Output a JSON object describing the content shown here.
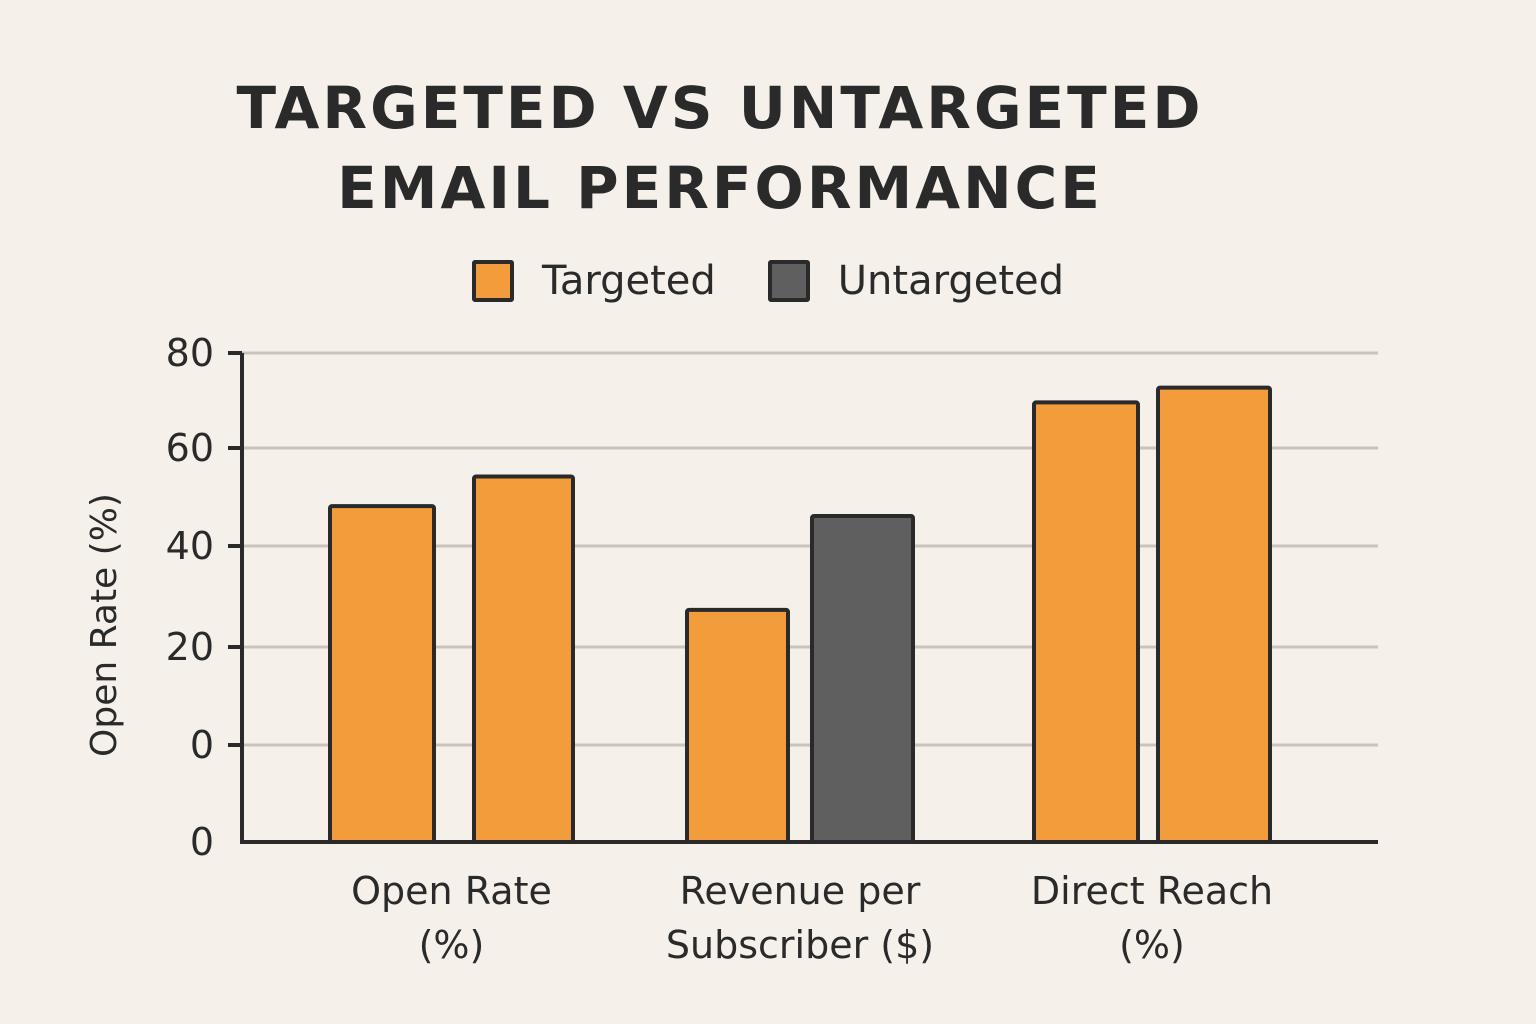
{
  "chart_data": {
    "type": "bar",
    "title_lines": [
      "TARGETED VS UNTARGETED",
      "EMAIL PERFORMANCE"
    ],
    "ylabel": "Open Rate (%)",
    "y_ticks": [
      "80",
      "60",
      "40",
      "20",
      "0",
      "0"
    ],
    "categories": [
      [
        "Open Rate",
        "(%)"
      ],
      [
        "Revenue per",
        "Subscriber ($)"
      ],
      [
        "Direct Reach",
        "(%)"
      ]
    ],
    "legend": [
      {
        "label": "Targeted",
        "color": "#f39c3c"
      },
      {
        "label": "Untargeted",
        "color": "#5f5f5f"
      }
    ],
    "series": [
      {
        "name": "Targeted",
        "values": [
          49,
          28,
          70
        ]
      },
      {
        "name": "Untargeted",
        "values": [
          55,
          47,
          73
        ]
      }
    ],
    "bar_colors": [
      [
        "#f39c3c",
        "#f39c3c"
      ],
      [
        "#f39c3c",
        "#5f5f5f"
      ],
      [
        "#f39c3c",
        "#f39c3c"
      ]
    ],
    "ylim": [
      -19,
      80
    ],
    "grid": true,
    "legend_position": "top-center"
  }
}
